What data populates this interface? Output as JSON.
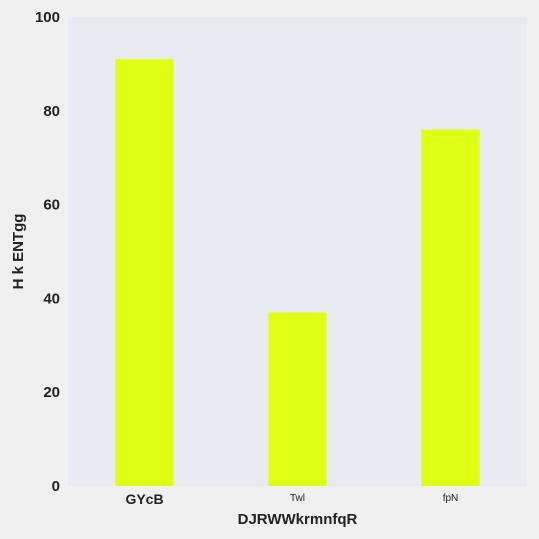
{
  "chart_data": {
    "type": "bar",
    "categories": [
      "GYcB",
      "Twl",
      "fpN"
    ],
    "values": [
      91,
      37,
      76
    ],
    "title": "",
    "xlabel": "DJRWWkrmnfqR",
    "ylabel": "H k ENTgg",
    "ylim": [
      0,
      100
    ],
    "yticks": [
      0,
      20,
      40,
      60,
      80,
      100
    ],
    "grid": false,
    "bar_color": "#dfff13",
    "plot_background": "#eaeaf2",
    "page_background": "#f0f0f0"
  }
}
